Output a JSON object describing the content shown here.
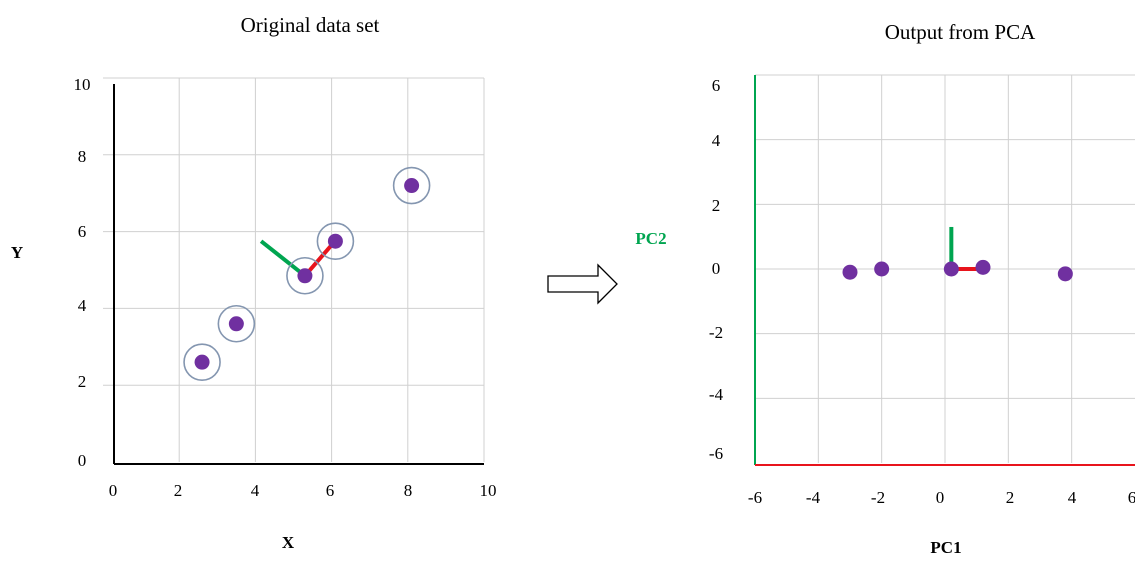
{
  "chart_data": [
    {
      "type": "scatter",
      "title": "Original data set",
      "xlabel": "X",
      "ylabel": "Y",
      "xlim": [
        0,
        10
      ],
      "ylim": [
        0,
        10
      ],
      "xticks": [
        "0",
        "2",
        "4",
        "6",
        "8",
        "10"
      ],
      "yticks": [
        "0",
        "2",
        "4",
        "6",
        "8",
        "10"
      ],
      "grid": true,
      "series": [
        {
          "x": [
            2.6,
            3.5,
            5.3,
            6.1,
            8.1
          ],
          "y": [
            2.6,
            3.6,
            4.85,
            5.75,
            7.2
          ]
        }
      ],
      "circled_points": [
        [
          2.6,
          2.6
        ],
        [
          3.5,
          3.6
        ],
        [
          5.3,
          4.85
        ],
        [
          6.1,
          5.75
        ],
        [
          8.1,
          7.2
        ]
      ],
      "vectors": [
        {
          "color": "#00a550",
          "from": [
            5.3,
            4.85
          ],
          "to": [
            4.15,
            5.75
          ]
        },
        {
          "color": "#e8141c",
          "from": [
            5.3,
            4.85
          ],
          "to": [
            6.0,
            5.65
          ]
        }
      ],
      "colors": {
        "point": "#7030a0",
        "ring": "#8496b0",
        "grid": "#d0d0d0"
      }
    },
    {
      "type": "scatter",
      "title": "Output from PCA",
      "xlabel": "PC1",
      "ylabel": "PC2",
      "xlim": [
        -6,
        6
      ],
      "ylim": [
        -6,
        6
      ],
      "xticks": [
        "-6",
        "-4",
        "-2",
        "0",
        "2",
        "4",
        "6"
      ],
      "yticks": [
        "-6",
        "-4",
        "-2",
        "0",
        "2",
        "4",
        "6"
      ],
      "grid": true,
      "series": [
        {
          "x": [
            -3.0,
            -2.0,
            0.2,
            1.2,
            3.8
          ],
          "y": [
            -0.1,
            0.0,
            0.0,
            0.05,
            -0.15
          ]
        }
      ],
      "vectors": [
        {
          "color": "#e8141c",
          "from": [
            0.2,
            0.0
          ],
          "to": [
            1.2,
            0.0
          ]
        },
        {
          "color": "#00a550",
          "from": [
            0.2,
            0.0
          ],
          "to": [
            0.2,
            1.3
          ]
        }
      ],
      "colors": {
        "point": "#7030a0",
        "grid": "#d0d0d0",
        "yaxis": "#00a550",
        "xaxis": "#e8141c",
        "ylabel": "#00a550"
      }
    }
  ]
}
